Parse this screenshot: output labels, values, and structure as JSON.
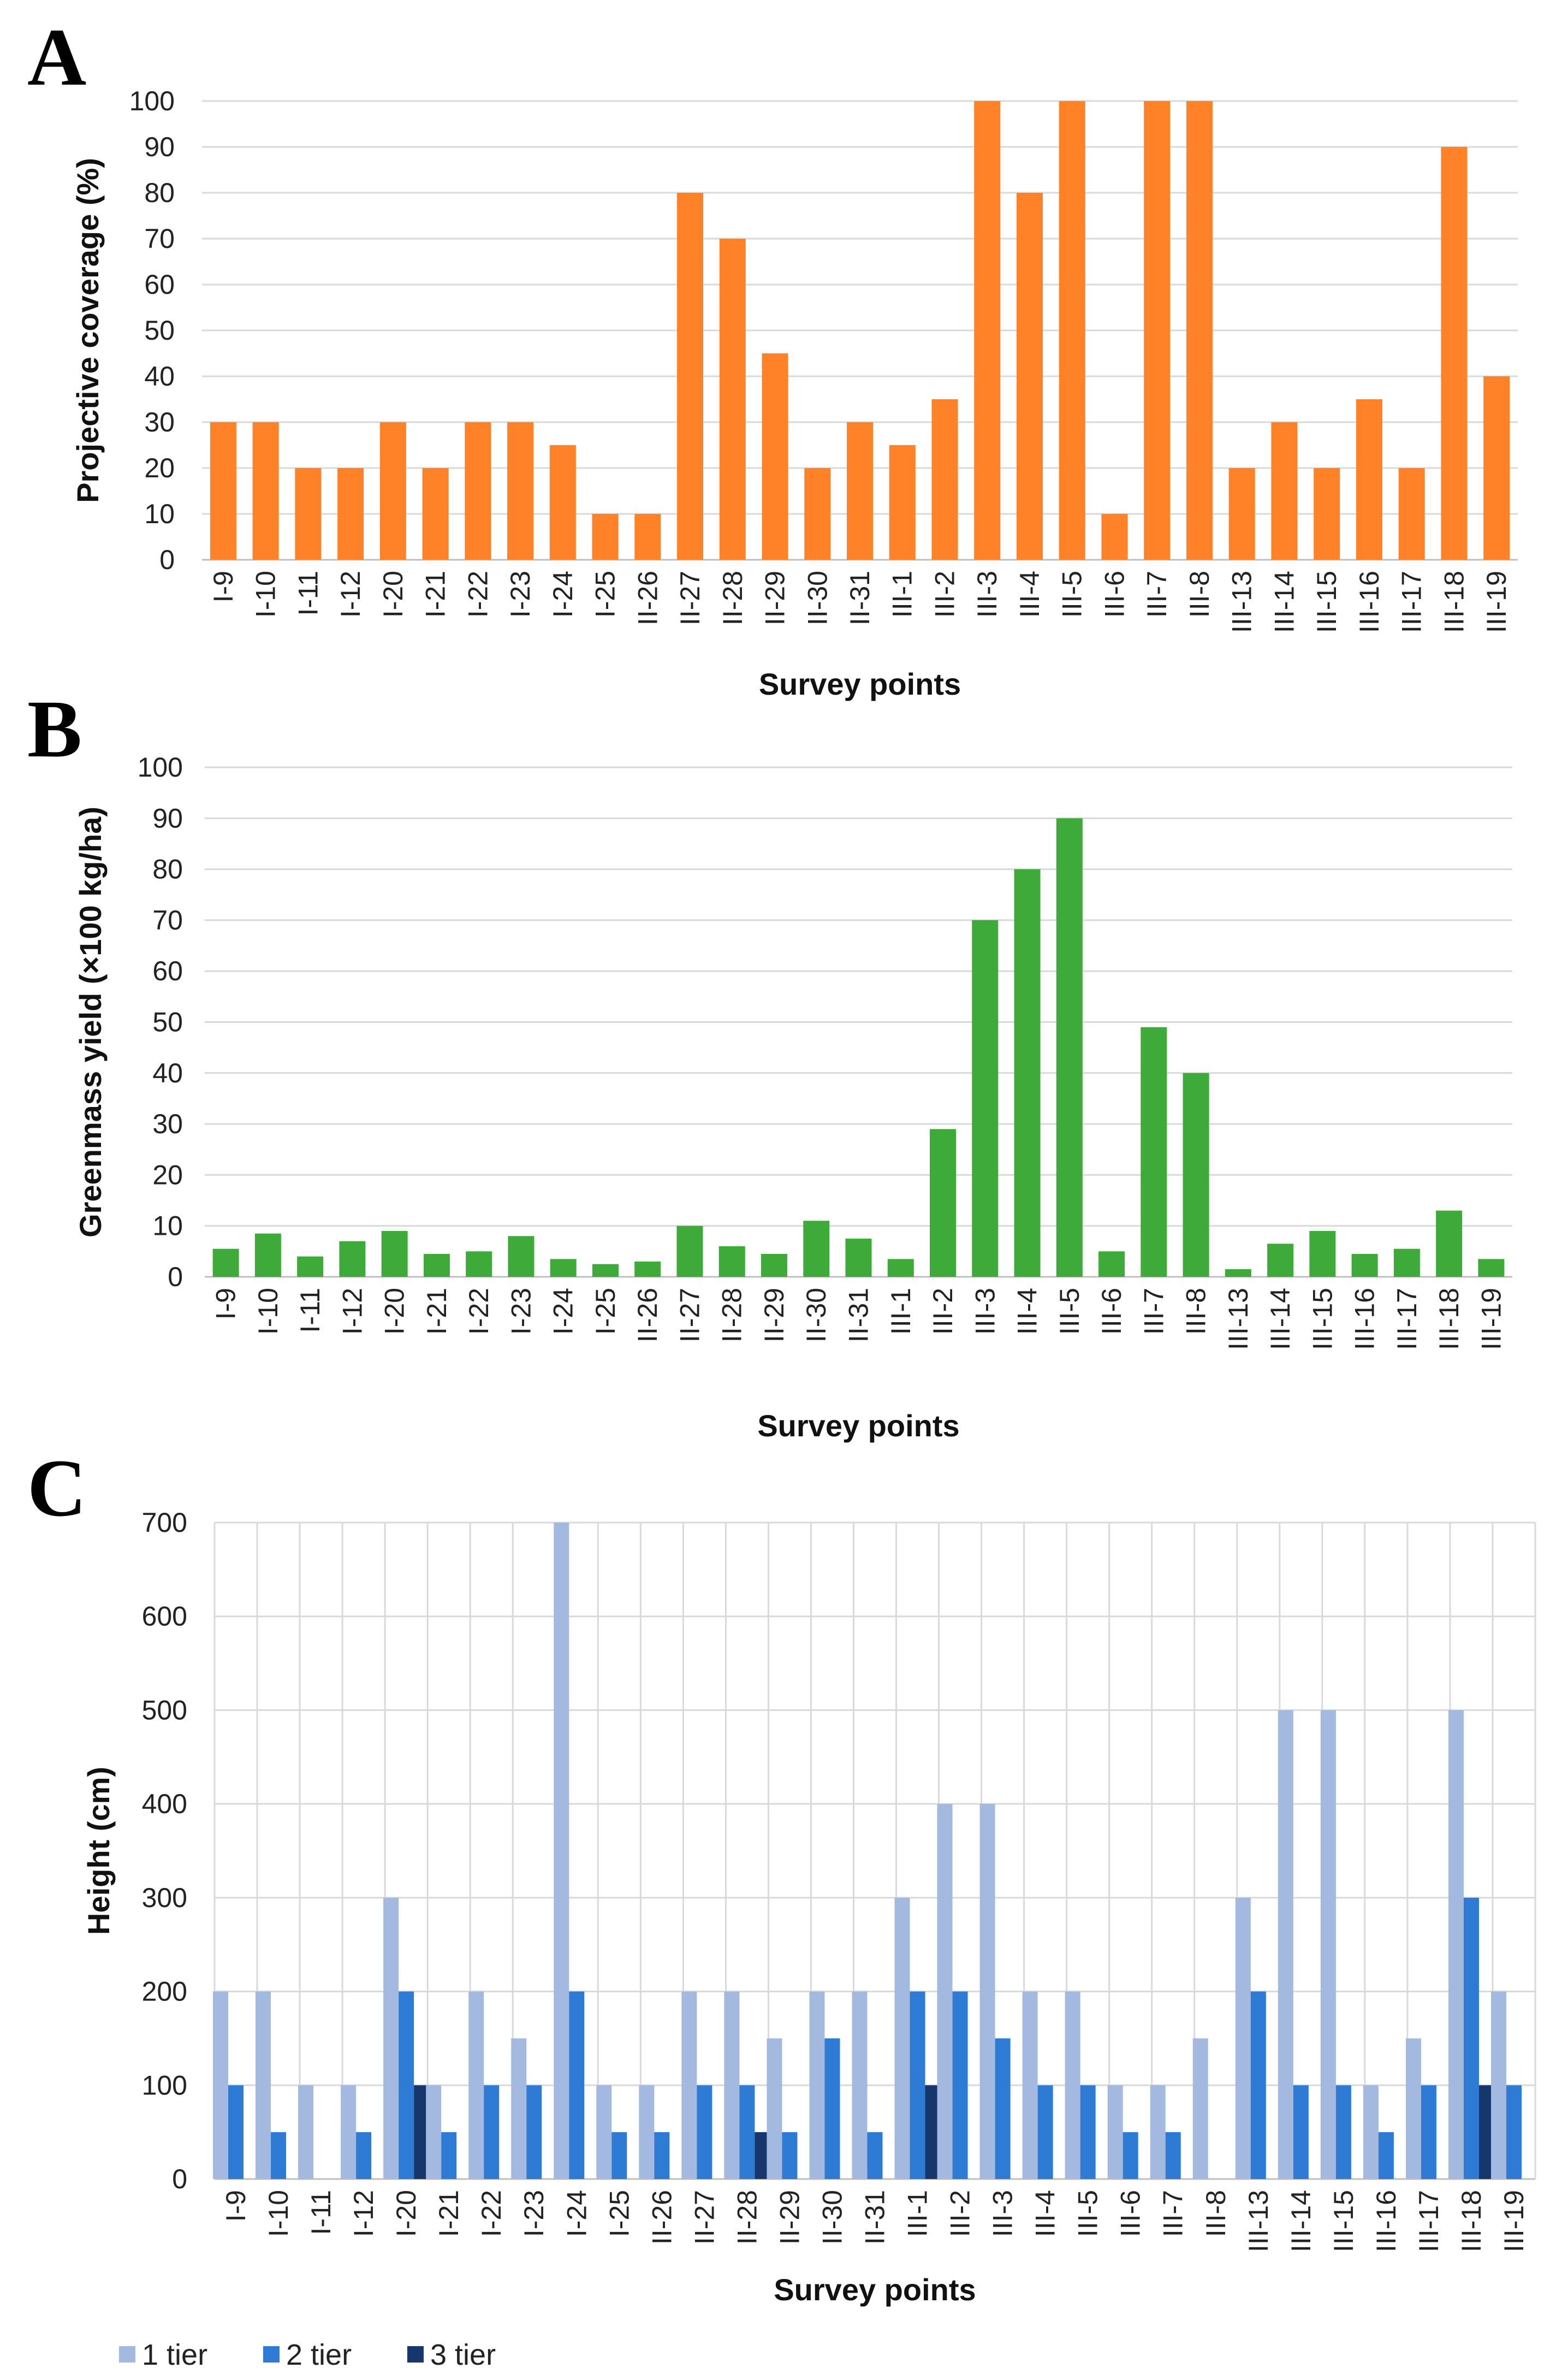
{
  "chart_data": [
    {
      "panel": "A",
      "type": "bar",
      "ylabel": "Projective coverage (%)",
      "xlabel": "Survey points",
      "ylim": [
        0,
        100
      ],
      "yticks": [
        0,
        10,
        20,
        30,
        40,
        50,
        60,
        70,
        80,
        90,
        100
      ],
      "grid": true,
      "color": "#FF8128",
      "categories": [
        "I-9",
        "I-10",
        "I-11",
        "I-12",
        "I-20",
        "I-21",
        "I-22",
        "I-23",
        "I-24",
        "I-25",
        "II-26",
        "II-27",
        "II-28",
        "II-29",
        "II-30",
        "II-31",
        "III-1",
        "III-2",
        "III-3",
        "III-4",
        "III-5",
        "III-6",
        "III-7",
        "III-8",
        "III-13",
        "III-14",
        "III-15",
        "III-16",
        "III-17",
        "III-18",
        "III-19"
      ],
      "values": [
        30,
        30,
        20,
        20,
        30,
        20,
        30,
        30,
        25,
        10,
        10,
        80,
        70,
        45,
        20,
        30,
        25,
        35,
        100,
        80,
        100,
        10,
        100,
        100,
        20,
        30,
        20,
        35,
        20,
        90,
        40
      ]
    },
    {
      "panel": "B",
      "type": "bar",
      "ylabel": "Greenmass yield (×100 kg/ha)",
      "xlabel": "Survey points",
      "ylim": [
        0,
        100
      ],
      "yticks": [
        0,
        10,
        20,
        30,
        40,
        50,
        60,
        70,
        80,
        90,
        100
      ],
      "grid": true,
      "color": "#3EAA3A",
      "categories": [
        "I-9",
        "I-10",
        "I-11",
        "I-12",
        "I-20",
        "I-21",
        "I-22",
        "I-23",
        "I-24",
        "I-25",
        "II-26",
        "II-27",
        "II-28",
        "II-29",
        "II-30",
        "II-31",
        "III-1",
        "III-2",
        "III-3",
        "III-4",
        "III-5",
        "III-6",
        "III-7",
        "III-8",
        "III-13",
        "III-14",
        "III-15",
        "III-16",
        "III-17",
        "III-18",
        "III-19"
      ],
      "values": [
        5.5,
        8.5,
        4,
        7,
        9,
        4.5,
        5,
        8,
        3.5,
        2.5,
        3,
        10,
        6,
        4.5,
        11,
        7.5,
        3.5,
        29,
        70,
        80,
        90,
        5,
        49,
        40,
        1.5,
        6.5,
        9,
        4.5,
        5.5,
        13,
        3.5
      ]
    },
    {
      "panel": "C",
      "type": "bar",
      "ylabel": "Height (cm)",
      "xlabel": "Survey points",
      "ylim": [
        0,
        700
      ],
      "yticks": [
        0,
        100,
        200,
        300,
        400,
        500,
        600,
        700
      ],
      "grid": true,
      "legend_position": "bottom-left",
      "categories": [
        "I-9",
        "I-10",
        "I-11",
        "I-12",
        "I-20",
        "I-21",
        "I-22",
        "I-23",
        "I-24",
        "I-25",
        "II-26",
        "II-27",
        "II-28",
        "II-29",
        "II-30",
        "II-31",
        "III-1",
        "III-2",
        "III-3",
        "III-4",
        "III-5",
        "III-6",
        "III-7",
        "III-8",
        "III-13",
        "III-14",
        "III-15",
        "III-16",
        "III-17",
        "III-18",
        "III-19"
      ],
      "series": [
        {
          "name": "1 tier",
          "color": "#A3B9E0",
          "values": [
            200,
            200,
            100,
            100,
            300,
            100,
            200,
            150,
            700,
            100,
            100,
            200,
            200,
            150,
            200,
            200,
            300,
            400,
            400,
            200,
            200,
            100,
            100,
            150,
            300,
            500,
            500,
            100,
            150,
            500,
            200
          ]
        },
        {
          "name": "2 tier",
          "color": "#2E7BD6",
          "values": [
            100,
            50,
            0,
            50,
            200,
            50,
            100,
            100,
            200,
            50,
            50,
            100,
            100,
            50,
            150,
            50,
            200,
            200,
            150,
            100,
            100,
            50,
            50,
            0,
            200,
            100,
            100,
            50,
            100,
            300,
            100
          ]
        },
        {
          "name": "3 tier",
          "color": "#17366B",
          "values": [
            0,
            0,
            0,
            0,
            100,
            0,
            0,
            0,
            0,
            0,
            0,
            0,
            50,
            0,
            0,
            0,
            100,
            0,
            0,
            0,
            0,
            0,
            0,
            0,
            0,
            0,
            0,
            0,
            0,
            100,
            0
          ]
        }
      ]
    }
  ],
  "letters": [
    "A",
    "B",
    "C"
  ]
}
